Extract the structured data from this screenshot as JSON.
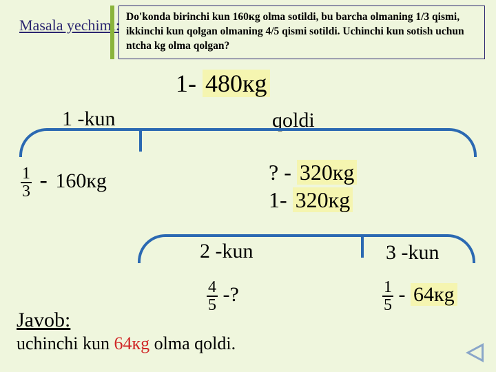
{
  "header": {
    "label": "Masala yechimi:"
  },
  "problem": "Do'konda birinchi kun 160кg olma sotildi, bu barcha olmaning 1/3 qismi, ikkinchi kun qolgan olmaning 4/5 qismi sotildi. Uchinchi kun sotish uchun ntcha kg olma qolgan?",
  "step1": {
    "prefix": "1-",
    "value": "480кg"
  },
  "bracket1": {
    "left_label": "1 -kun",
    "right_label": "qoldi"
  },
  "row_1_3": {
    "num": "1",
    "den": "3",
    "dash": "-",
    "value": "160кg"
  },
  "row_q": {
    "prefix": "? -",
    "value": "320кg"
  },
  "row_1b": {
    "prefix": "1-",
    "value": "320кg"
  },
  "bracket2": {
    "left_label": "2 -kun",
    "right_label": "3 -kun"
  },
  "row_4_5": {
    "num": "4",
    "den": "5",
    "tail": "-?"
  },
  "row_1_5": {
    "num": "1",
    "den": "5",
    "dash": "-",
    "value": "64кg"
  },
  "javob": {
    "label": "Javob:",
    "pre": "uchinchi kun ",
    "red": "64кg",
    "post": " olma qoldi."
  }
}
